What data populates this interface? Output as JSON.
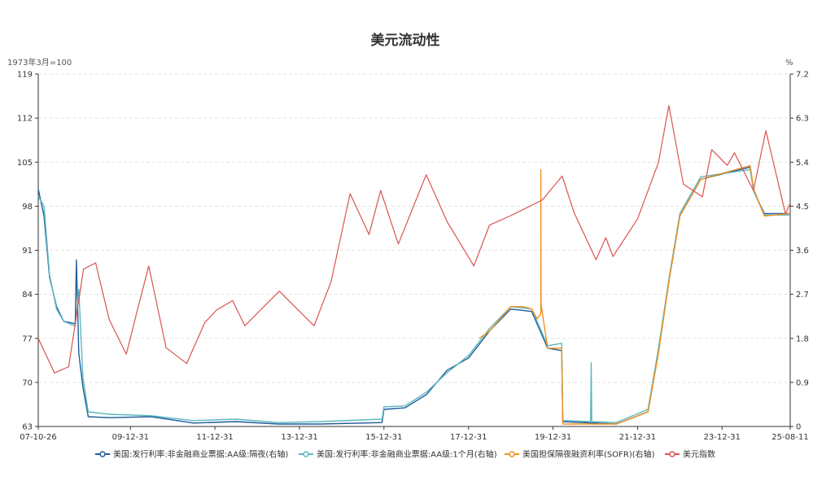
{
  "chart_data": {
    "type": "line",
    "title": "美元流动性",
    "left_axis": {
      "unit": "1973年3月=100",
      "range": [
        63,
        119
      ],
      "ticks": [
        63,
        70,
        77,
        84,
        91,
        98,
        105,
        112,
        119
      ]
    },
    "right_axis": {
      "unit": "%",
      "range": [
        0,
        7.2
      ],
      "ticks": [
        "0",
        "0.9",
        "1.8",
        "2.7",
        "3.6",
        "4.5",
        "5.4",
        "6.3",
        "7.2"
      ]
    },
    "x_axis": {
      "range": [
        "2007-10-26",
        "2025-08-11"
      ],
      "tick_labels": [
        "07-10-26",
        "09-12-31",
        "11-12-31",
        "13-12-31",
        "15-12-31",
        "17-12-31",
        "19-12-31",
        "21-12-31",
        "23-12-31",
        "25-08-11"
      ]
    },
    "grid": true,
    "legend_position": "bottom",
    "series": [
      {
        "name": "美国:发行利率:非金融商业票据:AA级:隔夜(右轴)",
        "axis": "right",
        "color": "#1f5c99",
        "points": [
          [
            "2007-10-26",
            4.85
          ],
          [
            "2007-12-15",
            4.3
          ],
          [
            "2008-02-01",
            3.05
          ],
          [
            "2008-04-01",
            2.45
          ],
          [
            "2008-06-01",
            2.15
          ],
          [
            "2008-09-10",
            2.1
          ],
          [
            "2008-09-20",
            3.4
          ],
          [
            "2008-10-10",
            1.5
          ],
          [
            "2008-11-15",
            0.8
          ],
          [
            "2008-12-31",
            0.2
          ],
          [
            "2009-06-30",
            0.18
          ],
          [
            "2010-06-30",
            0.2
          ],
          [
            "2011-06-30",
            0.07
          ],
          [
            "2012-06-30",
            0.1
          ],
          [
            "2013-06-30",
            0.05
          ],
          [
            "2014-06-30",
            0.05
          ],
          [
            "2015-12-15",
            0.08
          ],
          [
            "2015-12-31",
            0.35
          ],
          [
            "2016-06-30",
            0.38
          ],
          [
            "2016-12-31",
            0.65
          ],
          [
            "2017-06-30",
            1.15
          ],
          [
            "2017-12-31",
            1.4
          ],
          [
            "2018-06-30",
            1.95
          ],
          [
            "2018-12-31",
            2.4
          ],
          [
            "2019-06-30",
            2.35
          ],
          [
            "2019-08-15",
            2.1
          ],
          [
            "2019-11-15",
            1.6
          ],
          [
            "2020-03-15",
            1.55
          ],
          [
            "2020-03-25",
            0.1
          ],
          [
            "2021-06-30",
            0.05
          ],
          [
            "2022-03-31",
            0.3
          ],
          [
            "2022-06-30",
            1.55
          ],
          [
            "2022-09-30",
            3.0
          ],
          [
            "2022-12-31",
            4.3
          ],
          [
            "2023-06-30",
            5.05
          ],
          [
            "2024-08-30",
            5.3
          ],
          [
            "2024-09-30",
            4.8
          ],
          [
            "2024-12-31",
            4.35
          ],
          [
            "2025-08-11",
            4.35
          ]
        ]
      },
      {
        "name": "美国:发行利率:非金融商业票据:AA级:1个月(右轴)",
        "axis": "right",
        "color": "#5bb8c1",
        "points": [
          [
            "2007-10-26",
            4.7
          ],
          [
            "2007-12-15",
            4.5
          ],
          [
            "2008-02-01",
            3.1
          ],
          [
            "2008-04-01",
            2.4
          ],
          [
            "2008-06-01",
            2.15
          ],
          [
            "2008-09-10",
            2.05
          ],
          [
            "2008-10-10",
            2.8
          ],
          [
            "2008-11-15",
            1.0
          ],
          [
            "2008-12-31",
            0.3
          ],
          [
            "2009-06-30",
            0.25
          ],
          [
            "2010-06-30",
            0.22
          ],
          [
            "2011-06-30",
            0.12
          ],
          [
            "2012-06-30",
            0.15
          ],
          [
            "2013-06-30",
            0.08
          ],
          [
            "2014-06-30",
            0.1
          ],
          [
            "2015-12-15",
            0.15
          ],
          [
            "2015-12-31",
            0.4
          ],
          [
            "2016-06-30",
            0.42
          ],
          [
            "2016-12-31",
            0.7
          ],
          [
            "2017-06-30",
            1.1
          ],
          [
            "2017-12-31",
            1.45
          ],
          [
            "2018-06-30",
            2.0
          ],
          [
            "2018-12-31",
            2.45
          ],
          [
            "2019-06-30",
            2.4
          ],
          [
            "2019-08-15",
            2.15
          ],
          [
            "2019-11-15",
            1.65
          ],
          [
            "2020-03-15",
            1.7
          ],
          [
            "2020-03-25",
            0.12
          ],
          [
            "2020-11-20",
            0.1
          ],
          [
            "2020-11-25",
            1.3
          ],
          [
            "2020-11-30",
            0.1
          ],
          [
            "2021-06-30",
            0.08
          ],
          [
            "2022-03-31",
            0.35
          ],
          [
            "2022-06-30",
            1.6
          ],
          [
            "2022-09-30",
            3.05
          ],
          [
            "2022-12-31",
            4.35
          ],
          [
            "2023-06-30",
            5.1
          ],
          [
            "2024-08-30",
            5.25
          ],
          [
            "2024-09-30",
            4.8
          ],
          [
            "2024-12-31",
            4.32
          ],
          [
            "2025-08-11",
            4.32
          ]
        ]
      },
      {
        "name": "美国担保隔夜融资利率(SOFR)(右轴)",
        "axis": "right",
        "color": "#f0901e",
        "points": [
          [
            "2018-04-03",
            1.8
          ],
          [
            "2018-06-30",
            1.95
          ],
          [
            "2018-10-01",
            2.2
          ],
          [
            "2018-12-31",
            2.45
          ],
          [
            "2019-04-15",
            2.45
          ],
          [
            "2019-06-30",
            2.4
          ],
          [
            "2019-08-15",
            2.2
          ],
          [
            "2019-09-16",
            2.3
          ],
          [
            "2019-09-17",
            5.25
          ],
          [
            "2019-09-18",
            2.5
          ],
          [
            "2019-11-15",
            1.6
          ],
          [
            "2020-03-15",
            1.6
          ],
          [
            "2020-03-25",
            0.05
          ],
          [
            "2021-06-30",
            0.05
          ],
          [
            "2022-03-31",
            0.3
          ],
          [
            "2022-06-30",
            1.5
          ],
          [
            "2022-09-30",
            3.0
          ],
          [
            "2022-12-31",
            4.3
          ],
          [
            "2023-06-30",
            5.05
          ],
          [
            "2024-08-30",
            5.33
          ],
          [
            "2024-09-30",
            4.85
          ],
          [
            "2024-12-31",
            4.3
          ],
          [
            "2025-08-11",
            4.35
          ]
        ]
      },
      {
        "name": "美元指数",
        "axis": "left",
        "color": "#d9534f",
        "points": [
          [
            "2007-10-26",
            77.0
          ],
          [
            "2008-03-15",
            71.5
          ],
          [
            "2008-07-15",
            72.5
          ],
          [
            "2008-11-20",
            88.0
          ],
          [
            "2009-03-05",
            89.0
          ],
          [
            "2009-06-30",
            80.0
          ],
          [
            "2009-11-25",
            74.5
          ],
          [
            "2010-03-01",
            81.5
          ],
          [
            "2010-06-07",
            88.5
          ],
          [
            "2010-11-04",
            75.5
          ],
          [
            "2011-05-01",
            73.0
          ],
          [
            "2011-10-04",
            79.5
          ],
          [
            "2012-01-13",
            81.5
          ],
          [
            "2012-06-01",
            83.0
          ],
          [
            "2012-09-14",
            79.0
          ],
          [
            "2013-07-09",
            84.5
          ],
          [
            "2014-05-06",
            79.0
          ],
          [
            "2014-09-30",
            86.0
          ],
          [
            "2015-03-13",
            100.0
          ],
          [
            "2015-08-24",
            93.5
          ],
          [
            "2015-12-02",
            100.5
          ],
          [
            "2016-05-03",
            92.0
          ],
          [
            "2016-12-30",
            103.0
          ],
          [
            "2017-06-30",
            95.5
          ],
          [
            "2018-02-15",
            88.5
          ],
          [
            "2018-06-30",
            95.0
          ],
          [
            "2018-12-31",
            96.5
          ],
          [
            "2019-09-30",
            99.0
          ],
          [
            "2020-03-19",
            102.8
          ],
          [
            "2020-06-30",
            97.0
          ],
          [
            "2021-01-06",
            89.5
          ],
          [
            "2021-03-31",
            93.0
          ],
          [
            "2021-06-01",
            90.0
          ],
          [
            "2021-12-31",
            96.0
          ],
          [
            "2022-06-30",
            105.0
          ],
          [
            "2022-09-27",
            114.0
          ],
          [
            "2023-01-31",
            101.5
          ],
          [
            "2023-07-14",
            99.5
          ],
          [
            "2023-10-03",
            107.0
          ],
          [
            "2024-02-14",
            104.5
          ],
          [
            "2024-04-16",
            106.5
          ],
          [
            "2024-09-27",
            100.5
          ],
          [
            "2025-01-13",
            110.0
          ],
          [
            "2025-03-31",
            104.0
          ],
          [
            "2025-07-01",
            96.8
          ],
          [
            "2025-08-11",
            98.5
          ]
        ]
      }
    ]
  }
}
